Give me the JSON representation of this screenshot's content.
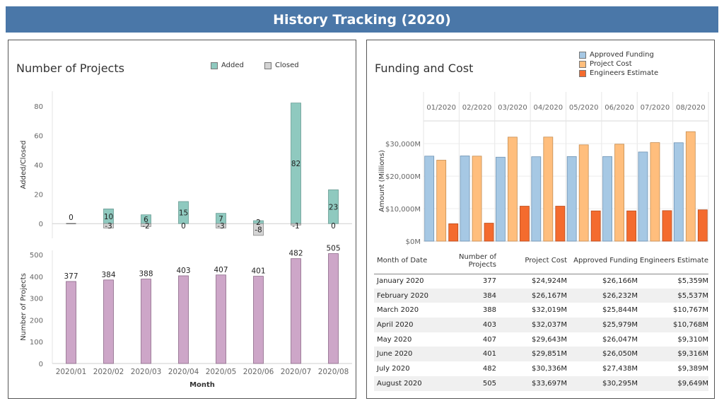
{
  "header": {
    "title": "History Tracking (2020)"
  },
  "colors": {
    "banner": "#4a77a8",
    "added": "#8fc9bf",
    "closed": "#d4d4d4",
    "projects": "#cda6c8",
    "approved": "#a6c8e4",
    "cost": "#ffbe7d",
    "estimate": "#f46b2e"
  },
  "left_panel": {
    "title": "Number of Projects",
    "legend": {
      "added": "Added",
      "closed": "Closed"
    },
    "top_axis_label": "Added/Closed",
    "bottom_axis_label": "Number of Projects",
    "x_axis_label": "Month"
  },
  "right_panel": {
    "title": "Funding and Cost",
    "legend": {
      "approved": "Approved Funding",
      "cost": "Project Cost",
      "estimate": "Engineers Estimate"
    },
    "y_axis_label": "Amount (Millions)"
  },
  "chart_data": [
    {
      "type": "bar",
      "categories": [
        "2020/01",
        "2020/02",
        "2020/03",
        "2020/04",
        "2020/05",
        "2020/06",
        "2020/07",
        "2020/08"
      ],
      "series": [
        {
          "name": "Added",
          "values": [
            0,
            10,
            6,
            15,
            7,
            2,
            82,
            23
          ]
        },
        {
          "name": "Closed",
          "values": [
            0,
            -3,
            -2,
            0,
            -3,
            -8,
            -1,
            0
          ]
        }
      ],
      "xlabel": "",
      "ylabel": "Added/Closed",
      "ylim": [
        -10,
        90
      ],
      "yticks": [
        0,
        20,
        40,
        60,
        80
      ],
      "data_labels": [
        [
          "0",
          ""
        ],
        [
          "10",
          "-3"
        ],
        [
          "6",
          "-2"
        ],
        [
          "15",
          "0"
        ],
        [
          "7",
          "-3"
        ],
        [
          "2",
          "-8"
        ],
        [
          "82",
          "-1"
        ],
        [
          "23",
          "0"
        ]
      ]
    },
    {
      "type": "bar",
      "categories": [
        "2020/01",
        "2020/02",
        "2020/03",
        "2020/04",
        "2020/05",
        "2020/06",
        "2020/07",
        "2020/08"
      ],
      "values": [
        377,
        384,
        388,
        403,
        407,
        401,
        482,
        505
      ],
      "xlabel": "Month",
      "ylabel": "Number of Projects",
      "ylim": [
        0,
        520
      ],
      "yticks": [
        0,
        100,
        200,
        300,
        400,
        500
      ]
    },
    {
      "type": "bar",
      "categories": [
        "01/2020",
        "02/2020",
        "03/2020",
        "04/2020",
        "05/2020",
        "06/2020",
        "07/2020",
        "08/2020"
      ],
      "series": [
        {
          "name": "Approved Funding",
          "values": [
            26166,
            26232,
            25844,
            25979,
            26047,
            26050,
            27438,
            30295
          ]
        },
        {
          "name": "Project Cost",
          "values": [
            24924,
            26167,
            32019,
            32037,
            29643,
            29851,
            30336,
            33697
          ]
        },
        {
          "name": "Engineers Estimate",
          "values": [
            5359,
            5537,
            10767,
            10768,
            9310,
            9316,
            9389,
            9649
          ]
        }
      ],
      "ylabel": "Amount (Millions)",
      "ylim": [
        0,
        37000
      ],
      "yticks": [
        0,
        10000,
        20000,
        30000
      ],
      "ytick_labels": [
        "$0M",
        "$10,000M",
        "$20,000M",
        "$30,000M"
      ]
    }
  ],
  "table": {
    "headers": [
      "Month of Date",
      "Number of Projects",
      "Project Cost",
      "Approved Funding",
      "Engineers Estimate"
    ],
    "rows": [
      [
        "January 2020",
        "377",
        "$24,924M",
        "$26,166M",
        "$5,359M"
      ],
      [
        "February 2020",
        "384",
        "$26,167M",
        "$26,232M",
        "$5,537M"
      ],
      [
        "March 2020",
        "388",
        "$32,019M",
        "$25,844M",
        "$10,767M"
      ],
      [
        "April 2020",
        "403",
        "$32,037M",
        "$25,979M",
        "$10,768M"
      ],
      [
        "May 2020",
        "407",
        "$29,643M",
        "$26,047M",
        "$9,310M"
      ],
      [
        "June 2020",
        "401",
        "$29,851M",
        "$26,050M",
        "$9,316M"
      ],
      [
        "July 2020",
        "482",
        "$30,336M",
        "$27,438M",
        "$9,389M"
      ],
      [
        "August 2020",
        "505",
        "$33,697M",
        "$30,295M",
        "$9,649M"
      ]
    ]
  }
}
